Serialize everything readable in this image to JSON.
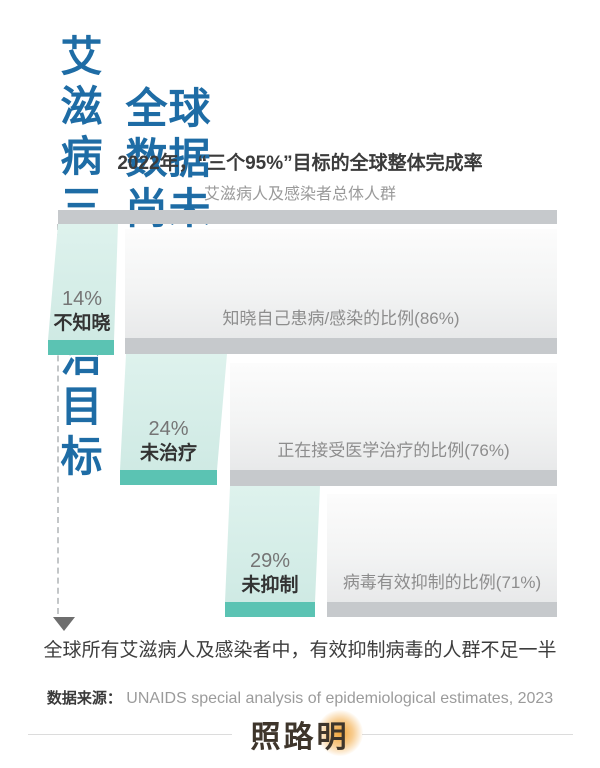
{
  "header": {
    "title_line1": "艾滋病三大防治目标",
    "title_line2": "全球数据尚未达成"
  },
  "chart_data": {
    "type": "funnel",
    "title": "2022年，“三个95%”目标的全球整体完成率",
    "population_label": "艾滋病人及感染者总体人群",
    "rows": [
      {
        "gap_value": 14,
        "gap_pct": "14%",
        "gap_label": "不知晓",
        "kept_value": 86,
        "kept_label": "知晓自己患病/感染的比例(86%)"
      },
      {
        "gap_value": 24,
        "gap_pct": "24%",
        "gap_label": "未治疗",
        "kept_value": 76,
        "kept_label": "正在接受医学治疗的比例(76%)"
      },
      {
        "gap_value": 29,
        "gap_pct": "29%",
        "gap_label": "未抑制",
        "kept_value": 71,
        "kept_label": "病毒有效抑制的比例(71%)"
      }
    ],
    "conclusion": "全球所有艾滋病人及感染者中，有效抑制病毒的人群不足一半"
  },
  "source": {
    "label": "数据来源：",
    "text": "UNAIDS special analysis of epidemiological estimates, 2023"
  },
  "footer": {
    "logo": "照路明"
  },
  "colors": {
    "title_blue": "#1e6ca5",
    "teal_dark": "#5bc3b3",
    "teal_light": "#d6eee9",
    "bar_gray": "#c6c9cc",
    "box_gradient_top": "#fcfcfc",
    "box_gradient_bottom": "#e8e9ea",
    "logo_glow_orange": "#f2a437"
  }
}
